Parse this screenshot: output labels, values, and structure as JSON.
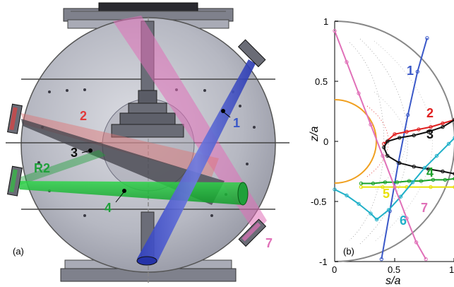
{
  "panel_a": {
    "label": "(a)",
    "chord_labels": [
      {
        "text": "1",
        "color": "#3a58c8"
      },
      {
        "text": "2",
        "color": "#e23a3a"
      },
      {
        "text": "3",
        "color": "#111111"
      },
      {
        "text": "4",
        "color": "#1fa03a"
      },
      {
        "text": "7",
        "color": "#e070b8"
      },
      {
        "text": "R2",
        "color": "#1fa03a"
      }
    ]
  },
  "panel_b": {
    "label": "(b)",
    "xlabel": "s/a",
    "ylabel": "z/a",
    "xticks": [
      "0",
      "0.5",
      "1"
    ],
    "yticks": [
      "1",
      "0.5",
      "0",
      "-0.5",
      "-1"
    ],
    "chord_labels": [
      {
        "text": "1",
        "color": "#3a58c8"
      },
      {
        "text": "2",
        "color": "#e02020"
      },
      {
        "text": "3",
        "color": "#111111"
      },
      {
        "text": "4",
        "color": "#18a028"
      },
      {
        "text": "5",
        "color": "#e8e000"
      },
      {
        "text": "6",
        "color": "#20b0c8"
      },
      {
        "text": "7",
        "color": "#e070b8"
      }
    ]
  },
  "chart_data": {
    "type": "line",
    "xlabel": "s/a",
    "ylabel": "z/a",
    "xlim": [
      0,
      1
    ],
    "ylim": [
      -1,
      1
    ],
    "series": [
      {
        "name": "1",
        "color": "#3a58c8",
        "x": [
          0.39,
          0.46,
          0.53,
          0.61,
          0.69,
          0.77
        ],
        "y": [
          -0.98,
          -0.58,
          -0.18,
          0.22,
          0.58,
          0.86
        ]
      },
      {
        "name": "2",
        "color": "#e02020",
        "x": [
          0.41,
          0.5,
          0.6,
          0.7,
          0.8,
          0.9,
          1.0
        ],
        "y": [
          -0.02,
          0.06,
          0.08,
          0.1,
          0.12,
          0.15,
          0.18
        ]
      },
      {
        "name": "3",
        "color": "#111111",
        "x": [
          1.0,
          0.9,
          0.78,
          0.66,
          0.54,
          0.44,
          0.41,
          0.44,
          0.54,
          0.66,
          0.78,
          0.9,
          1.0
        ],
        "y": [
          0.18,
          0.12,
          0.08,
          0.05,
          0.03,
          0.0,
          -0.05,
          -0.12,
          -0.18,
          -0.21,
          -0.23,
          -0.25,
          -0.27
        ]
      },
      {
        "name": "4",
        "color": "#18a028",
        "x": [
          0.22,
          0.32,
          0.42,
          0.52,
          0.62,
          0.72,
          0.82,
          0.92,
          1.0
        ],
        "y": [
          -0.35,
          -0.35,
          -0.34,
          -0.34,
          -0.33,
          -0.33,
          -0.32,
          -0.32,
          -0.31
        ]
      },
      {
        "name": "5",
        "color": "#e8e000",
        "x": [
          0.22,
          0.4,
          0.6,
          0.8,
          1.0
        ],
        "y": [
          -0.38,
          -0.38,
          -0.38,
          -0.38,
          -0.38
        ]
      },
      {
        "name": "6",
        "color": "#20b0c8",
        "x": [
          0.0,
          0.1,
          0.2,
          0.3,
          0.35,
          0.45,
          0.55,
          0.65,
          0.75,
          0.85,
          0.95,
          1.0
        ],
        "y": [
          -0.4,
          -0.45,
          -0.52,
          -0.6,
          -0.65,
          -0.57,
          -0.46,
          -0.34,
          -0.22,
          -0.12,
          -0.02,
          0.03
        ]
      },
      {
        "name": "7",
        "color": "#e070b8",
        "x": [
          0.0,
          0.1,
          0.2,
          0.3,
          0.4,
          0.5,
          0.6,
          0.68,
          0.76
        ],
        "y": [
          0.92,
          0.66,
          0.4,
          0.14,
          -0.12,
          -0.38,
          -0.64,
          -0.84,
          -0.98
        ]
      }
    ]
  }
}
